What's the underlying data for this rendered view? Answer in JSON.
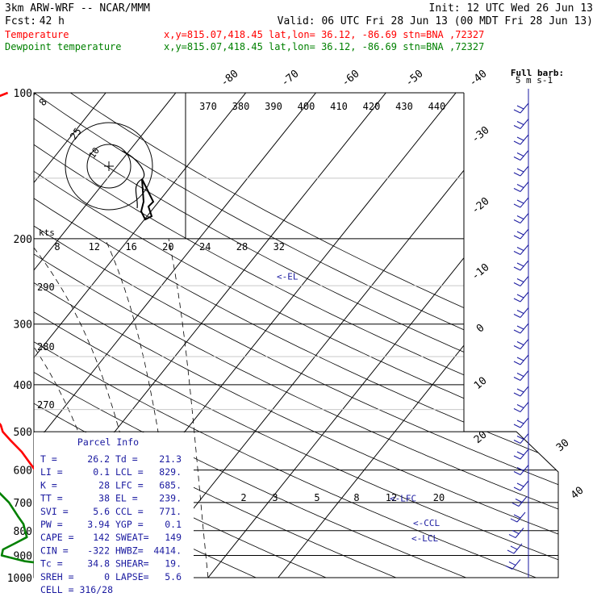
{
  "header": {
    "model": "3km ARW-WRF -- NCAR/MMM",
    "init": "Init: 12 UTC Wed 26 Jun 13",
    "fcst_label": "Fcst:",
    "fcst_value": "42 h",
    "valid": "Valid: 06 UTC Fri 28 Jun 13 (00 MDT Fri 28 Jun 13)"
  },
  "legend": [
    {
      "name": "Temperature",
      "color": "#ff0000",
      "location": "x,y=815.07,418.45   lat,lon= 36.12, -86.69   stn=BNA ,72327"
    },
    {
      "name": "Dewpoint temperature",
      "color": "#008000",
      "location": "x,y=815.07,418.45   lat,lon= 36.12, -86.69   stn=BNA ,72327"
    }
  ],
  "barb_key": {
    "title": "Full barb:",
    "value": "5 m s-1"
  },
  "chart_data": {
    "type": "line",
    "subtype": "skew-T log-P",
    "y_axis": {
      "label": "pressure (hPa)",
      "scale": "log",
      "ticks": [
        100,
        200,
        300,
        400,
        500,
        600,
        700,
        800,
        900,
        1000
      ]
    },
    "isotherm_labels": [
      "-80",
      "-70",
      "-60",
      "-50",
      "-40",
      "-30",
      "-20",
      "-10",
      "0",
      "10",
      "20",
      "30",
      "40"
    ],
    "theta_labels": [
      "370",
      "380",
      "390",
      "400",
      "410",
      "420",
      "430",
      "440"
    ],
    "mixing_ratio_labels": [
      "2",
      "3",
      "5",
      "8",
      "12",
      "20"
    ],
    "adiabat_labels": [
      "290",
      "280",
      "270"
    ],
    "hodograph": {
      "speed_units": "kts",
      "ring_labels": [
        "8",
        "12",
        "16",
        "20",
        "24",
        "28",
        "32"
      ],
      "circle_labels": [
        "25",
        "10"
      ]
    },
    "series": [
      {
        "name": "Temperature",
        "color": "#ff0000",
        "points": [
          [
            1000,
            26.2
          ],
          [
            990,
            28
          ],
          [
            975,
            28.5
          ],
          [
            950,
            27
          ],
          [
            925,
            25
          ],
          [
            900,
            23
          ],
          [
            875,
            21
          ],
          [
            850,
            19
          ],
          [
            825,
            17.5
          ],
          [
            800,
            15.5
          ],
          [
            775,
            14
          ],
          [
            750,
            12.5
          ],
          [
            700,
            9.5
          ],
          [
            650,
            6.5
          ],
          [
            600,
            3
          ],
          [
            550,
            -1
          ],
          [
            520,
            -4
          ],
          [
            500,
            -6
          ],
          [
            485,
            -7
          ],
          [
            470,
            -8.5
          ],
          [
            450,
            -11
          ],
          [
            425,
            -13.5
          ],
          [
            400,
            -16
          ],
          [
            375,
            -19.5
          ],
          [
            350,
            -23
          ],
          [
            325,
            -27
          ],
          [
            300,
            -31
          ],
          [
            275,
            -36
          ],
          [
            250,
            -41
          ],
          [
            225,
            -45
          ],
          [
            200,
            -50
          ],
          [
            175,
            -53.5
          ],
          [
            150,
            -56
          ],
          [
            140,
            -57.5
          ],
          [
            130,
            -58
          ],
          [
            125,
            -56
          ],
          [
            120,
            -54
          ],
          [
            115,
            -52
          ],
          [
            110,
            -49.5
          ],
          [
            105,
            -46.5
          ],
          [
            100,
            -44
          ]
        ]
      },
      {
        "name": "Dewpoint temperature",
        "color": "#008000",
        "points": [
          [
            1000,
            21.3
          ],
          [
            975,
            20.5
          ],
          [
            950,
            19
          ],
          [
            925,
            12
          ],
          [
            900,
            8
          ],
          [
            875,
            7.5
          ],
          [
            850,
            8.5
          ],
          [
            825,
            9.5
          ],
          [
            800,
            8.5
          ],
          [
            775,
            7.5
          ],
          [
            750,
            6
          ],
          [
            700,
            3
          ],
          [
            650,
            -1
          ],
          [
            600,
            -6
          ],
          [
            550,
            -12
          ],
          [
            520,
            -20
          ],
          [
            500,
            -26
          ],
          [
            480,
            -32
          ],
          [
            460,
            -40
          ],
          [
            440,
            -41
          ],
          [
            400,
            -44
          ],
          [
            375,
            -47
          ],
          [
            350,
            -50
          ],
          [
            325,
            -53
          ],
          [
            300,
            -56
          ],
          [
            275,
            -60
          ],
          [
            250,
            -64
          ],
          [
            225,
            -68
          ],
          [
            200,
            -72
          ],
          [
            190,
            -73.5
          ],
          [
            175,
            -73
          ],
          [
            160,
            -72.5
          ],
          [
            145,
            -72
          ],
          [
            130,
            -71
          ],
          [
            115,
            -70
          ],
          [
            100,
            -70
          ]
        ]
      }
    ],
    "level_labels": [
      {
        "text": "<-EL",
        "p": 239
      },
      {
        "text": "<-LFC",
        "p": 685
      },
      {
        "text": "<-CCL",
        "p": 771
      },
      {
        "text": "<-LCL",
        "p": 829
      }
    ],
    "wind_barbs_description": "column of wind barbs on right edge from 1000 to 100 hPa"
  },
  "parcel_info": {
    "title": "Parcel Info",
    "rows": [
      [
        "T  =",
        "26.2",
        "Td =",
        "21.3"
      ],
      [
        "LI =",
        "0.1",
        "LCL =",
        "829."
      ],
      [
        "K  =",
        "28",
        "LFC =",
        "685."
      ],
      [
        "TT =",
        "38",
        "EL  =",
        "239."
      ],
      [
        "SVI =",
        "5.6",
        "CCL =",
        "771."
      ],
      [
        "PW  =",
        "3.94",
        "YGP =",
        "0.1"
      ],
      [
        "CAPE =",
        "142",
        "SWEAT=",
        "149"
      ],
      [
        "CIN  =",
        "-322",
        "HWBZ=",
        "4414."
      ],
      [
        "Tc  =",
        "34.8",
        "SHEAR=",
        "19."
      ],
      [
        "SREH =",
        "0",
        "LAPSE=",
        "5.6"
      ]
    ],
    "cell": "CELL = 316/28"
  }
}
